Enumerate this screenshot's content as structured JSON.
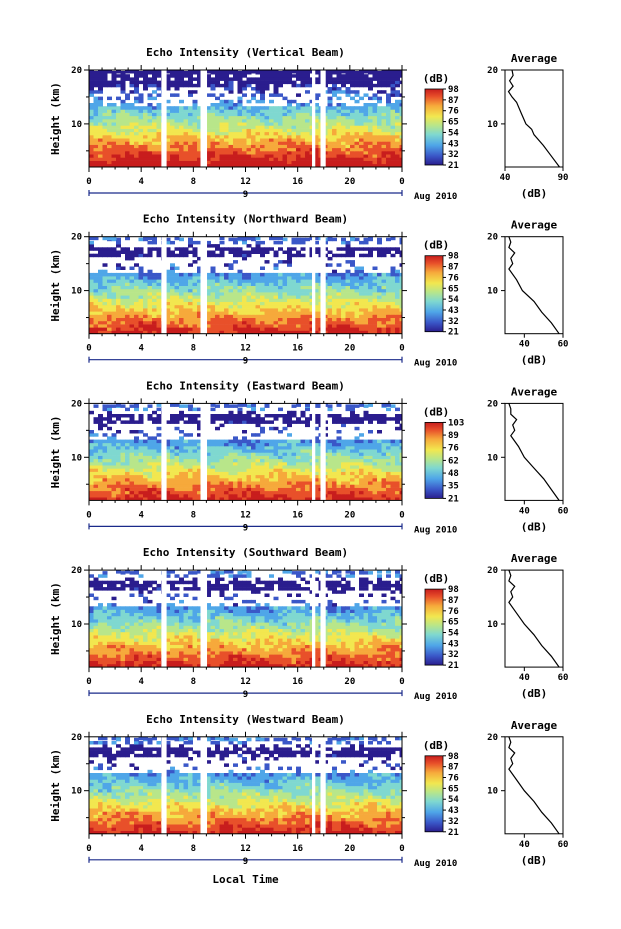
{
  "chart_data": [
    {
      "type": "heatmap",
      "title": "Echo Intensity (Vertical Beam)",
      "ylabel": "Height (km)",
      "x_ticks": [
        "0",
        "4",
        "8",
        "12",
        "16",
        "20",
        "0"
      ],
      "date_marker": "9",
      "date_label": "Aug 2010",
      "ylim": [
        2,
        20
      ],
      "y_ticks": [
        "10",
        "20"
      ],
      "colorbar": {
        "unit": "(dB)",
        "ticks": [
          "21",
          "32",
          "43",
          "54",
          "65",
          "76",
          "87",
          "98"
        ]
      },
      "gaps_hours": [
        [
          5.55,
          5.95
        ],
        [
          8.55,
          9.05
        ],
        [
          17.1,
          17.35
        ],
        [
          17.75,
          18.15
        ]
      ],
      "profile": {
        "title": "Average",
        "xlabel": "(dB)",
        "xlim": [
          40,
          90
        ],
        "x_ticks": [
          "40",
          "90"
        ],
        "y_ticks": [
          "10",
          "20"
        ],
        "heights_km": [
          2,
          4,
          6,
          8,
          9,
          10,
          12,
          14,
          15,
          16,
          17,
          18,
          19,
          20
        ],
        "values_db": [
          87,
          80,
          73,
          65,
          63,
          58,
          54,
          50,
          46,
          43,
          47,
          44,
          47,
          46
        ]
      }
    },
    {
      "type": "heatmap",
      "title": "Echo Intensity (Northward Beam)",
      "ylabel": "Height (km)",
      "x_ticks": [
        "0",
        "4",
        "8",
        "12",
        "16",
        "20",
        "0"
      ],
      "date_marker": "9",
      "date_label": "Aug 2010",
      "ylim": [
        2,
        20
      ],
      "y_ticks": [
        "10",
        "20"
      ],
      "colorbar": {
        "unit": "(dB)",
        "ticks": [
          "21",
          "32",
          "43",
          "54",
          "65",
          "76",
          "87",
          "98"
        ]
      },
      "gaps_hours": [
        [
          5.55,
          5.95
        ],
        [
          8.55,
          9.05
        ],
        [
          17.1,
          17.35
        ],
        [
          17.75,
          18.15
        ]
      ],
      "profile": {
        "title": "Average",
        "xlabel": "(dB)",
        "xlim": [
          30,
          60
        ],
        "x_ticks": [
          "40",
          "60"
        ],
        "y_ticks": [
          "10",
          "20"
        ],
        "heights_km": [
          2,
          4,
          6,
          8,
          10,
          12,
          14,
          15,
          16,
          17,
          18,
          19,
          20
        ],
        "values_db": [
          58,
          54,
          49,
          45,
          39,
          36,
          32,
          34,
          33,
          35,
          32,
          33,
          32
        ]
      }
    },
    {
      "type": "heatmap",
      "title": "Echo Intensity (Eastward Beam)",
      "ylabel": "Height (km)",
      "x_ticks": [
        "0",
        "4",
        "8",
        "12",
        "16",
        "20",
        "0"
      ],
      "date_marker": "9",
      "date_label": "Aug 2010",
      "ylim": [
        2,
        20
      ],
      "y_ticks": [
        "10",
        "20"
      ],
      "colorbar": {
        "unit": "(dB)",
        "ticks": [
          "21",
          "35",
          "48",
          "62",
          "76",
          "89",
          "103"
        ]
      },
      "gaps_hours": [
        [
          5.55,
          5.95
        ],
        [
          8.55,
          9.05
        ],
        [
          17.1,
          17.35
        ],
        [
          17.75,
          18.15
        ]
      ],
      "profile": {
        "title": "Average",
        "xlabel": "(dB)",
        "xlim": [
          30,
          60
        ],
        "x_ticks": [
          "40",
          "60"
        ],
        "y_ticks": [
          "10",
          "20"
        ],
        "heights_km": [
          2,
          4,
          6,
          8,
          10,
          12,
          14,
          15,
          16,
          17,
          18,
          19,
          20
        ],
        "values_db": [
          58,
          54,
          50,
          45,
          40,
          37,
          33,
          35,
          34,
          36,
          33,
          33,
          32
        ]
      }
    },
    {
      "type": "heatmap",
      "title": "Echo Intensity (Southward Beam)",
      "ylabel": "Height (km)",
      "x_ticks": [
        "0",
        "4",
        "8",
        "12",
        "16",
        "20",
        "0"
      ],
      "date_marker": "9",
      "date_label": "Aug 2010",
      "ylim": [
        2,
        20
      ],
      "y_ticks": [
        "10",
        "20"
      ],
      "colorbar": {
        "unit": "(dB)",
        "ticks": [
          "21",
          "32",
          "43",
          "54",
          "65",
          "76",
          "87",
          "98"
        ]
      },
      "gaps_hours": [
        [
          5.55,
          5.95
        ],
        [
          8.55,
          9.05
        ],
        [
          17.1,
          17.35
        ],
        [
          17.75,
          18.15
        ]
      ],
      "profile": {
        "title": "Average",
        "xlabel": "(dB)",
        "xlim": [
          30,
          60
        ],
        "x_ticks": [
          "40",
          "60"
        ],
        "y_ticks": [
          "10",
          "20"
        ],
        "heights_km": [
          2,
          4,
          6,
          8,
          10,
          12,
          14,
          15,
          16,
          17,
          18,
          19,
          20
        ],
        "values_db": [
          58,
          54,
          49,
          45,
          40,
          36,
          32,
          34,
          33,
          35,
          32,
          33,
          32
        ]
      }
    },
    {
      "type": "heatmap",
      "title": "Echo Intensity (Westward Beam)",
      "ylabel": "Height (km)",
      "x_ticks": [
        "0",
        "4",
        "8",
        "12",
        "16",
        "20",
        "0"
      ],
      "date_marker": "9",
      "date_label": "Aug 2010",
      "xlabel": "Local Time",
      "ylim": [
        2,
        20
      ],
      "y_ticks": [
        "10",
        "20"
      ],
      "colorbar": {
        "unit": "(dB)",
        "ticks": [
          "21",
          "32",
          "43",
          "54",
          "65",
          "76",
          "87",
          "98"
        ]
      },
      "gaps_hours": [
        [
          5.55,
          5.95
        ],
        [
          8.55,
          9.05
        ],
        [
          17.1,
          17.35
        ],
        [
          17.75,
          18.15
        ]
      ],
      "profile": {
        "title": "Average",
        "xlabel": "(dB)",
        "xlim": [
          30,
          60
        ],
        "x_ticks": [
          "40",
          "60"
        ],
        "y_ticks": [
          "10",
          "20"
        ],
        "heights_km": [
          2,
          4,
          6,
          8,
          10,
          12,
          14,
          15,
          16,
          17,
          18,
          19,
          20
        ],
        "values_db": [
          58,
          54,
          49,
          45,
          40,
          36,
          32,
          34,
          33,
          35,
          32,
          33,
          32
        ]
      }
    }
  ],
  "colors": {
    "colormap": [
      "#2a1d8e",
      "#3a57c8",
      "#4fa6e8",
      "#7fd8d0",
      "#b8e68a",
      "#f2e74f",
      "#f6a93b",
      "#e8502a",
      "#c81d1d"
    ]
  }
}
